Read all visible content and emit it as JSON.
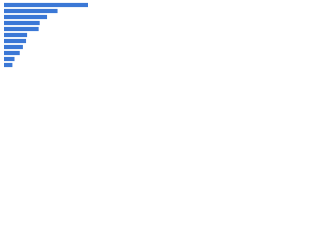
{
  "chart_data": {
    "type": "hbar",
    "categories": [
      null,
      null,
      null,
      null,
      null,
      null,
      null,
      null,
      null,
      null,
      null
    ],
    "values": [
      80,
      51,
      41,
      34,
      33,
      22,
      21,
      18,
      15,
      10,
      8
    ],
    "color": "#3b78d6"
  }
}
